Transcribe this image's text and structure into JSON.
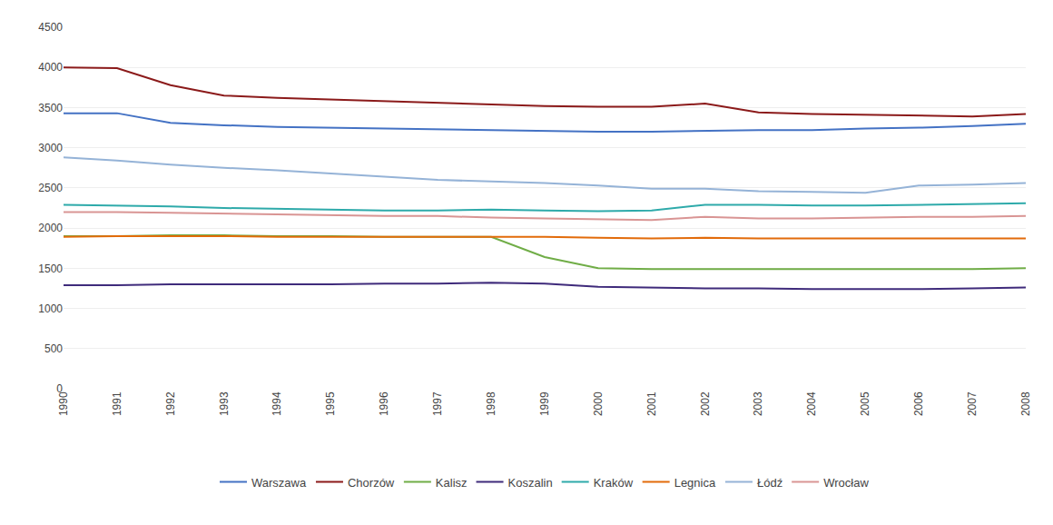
{
  "chart_data": {
    "type": "line",
    "x": [
      1990,
      1991,
      1992,
      1993,
      1994,
      1995,
      1996,
      1997,
      1998,
      1999,
      2000,
      2001,
      2002,
      2003,
      2004,
      2005,
      2006,
      2007,
      2008
    ],
    "series": [
      {
        "name": "Warszawa",
        "color": "#4472C4",
        "values": [
          3430,
          3430,
          3310,
          3280,
          3260,
          3250,
          3240,
          3230,
          3220,
          3210,
          3200,
          3200,
          3210,
          3220,
          3220,
          3240,
          3250,
          3270,
          3300
        ]
      },
      {
        "name": "Chorzów",
        "color": "#8B1A1A",
        "values": [
          4000,
          3990,
          3780,
          3650,
          3620,
          3600,
          3580,
          3560,
          3540,
          3520,
          3510,
          3510,
          3550,
          3440,
          3420,
          3410,
          3400,
          3390,
          3420
        ]
      },
      {
        "name": "Kalisz",
        "color": "#70AD47",
        "values": [
          1900,
          1900,
          1910,
          1910,
          1900,
          1900,
          1890,
          1890,
          1890,
          1640,
          1500,
          1490,
          1490,
          1490,
          1490,
          1490,
          1490,
          1490,
          1500
        ]
      },
      {
        "name": "Koszalin",
        "color": "#3F2B7B",
        "values": [
          1290,
          1290,
          1300,
          1300,
          1300,
          1300,
          1310,
          1310,
          1320,
          1310,
          1270,
          1260,
          1250,
          1250,
          1240,
          1240,
          1240,
          1250,
          1260
        ]
      },
      {
        "name": "Kraków",
        "color": "#2EAAAA",
        "values": [
          2290,
          2280,
          2270,
          2250,
          2240,
          2230,
          2220,
          2220,
          2230,
          2220,
          2210,
          2220,
          2290,
          2290,
          2280,
          2280,
          2290,
          2300,
          2310
        ]
      },
      {
        "name": "Legnica",
        "color": "#E26B0A",
        "values": [
          1890,
          1900,
          1900,
          1900,
          1890,
          1890,
          1890,
          1890,
          1890,
          1890,
          1880,
          1870,
          1880,
          1870,
          1870,
          1870,
          1870,
          1870,
          1870
        ]
      },
      {
        "name": "Łódź",
        "color": "#95B3D7",
        "values": [
          2880,
          2840,
          2790,
          2750,
          2720,
          2680,
          2640,
          2600,
          2580,
          2560,
          2530,
          2490,
          2490,
          2460,
          2450,
          2440,
          2530,
          2540,
          2560
        ]
      },
      {
        "name": "Wrocław",
        "color": "#D99594",
        "values": [
          2200,
          2200,
          2190,
          2180,
          2170,
          2160,
          2150,
          2150,
          2130,
          2120,
          2110,
          2100,
          2140,
          2120,
          2120,
          2130,
          2140,
          2140,
          2150
        ]
      }
    ],
    "xlim": [
      1990,
      2008
    ],
    "xticks": [
      1990,
      1991,
      1992,
      1993,
      1994,
      1995,
      1996,
      1997,
      1998,
      1999,
      2000,
      2001,
      2002,
      2003,
      2004,
      2005,
      2006,
      2007,
      2008
    ],
    "ylim": [
      0,
      4500
    ],
    "yticks": [
      0,
      500,
      1000,
      1500,
      2000,
      2500,
      3000,
      3500,
      4000,
      4500
    ],
    "grid": "y",
    "legend": "bottom"
  }
}
